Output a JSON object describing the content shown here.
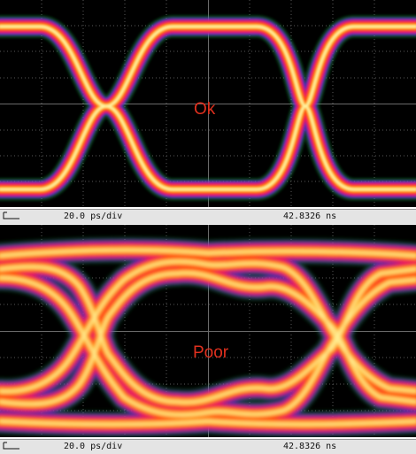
{
  "panels": [
    {
      "quality_label": "Ok",
      "timebase": "20.0 ps/div",
      "timestamp": "42.8326 ns",
      "eye": "open"
    },
    {
      "quality_label": "Poor",
      "timebase": "20.0 ps/div",
      "timestamp": "42.8326 ns",
      "eye": "degraded"
    }
  ],
  "colors": {
    "trace_core": "#fff7a8",
    "trace_mid": "#ffb300",
    "trace_outer": "#ff3d1f",
    "trace_edge": "#e0106a",
    "trace_halo": "#5a2ad8",
    "trace_fringe": "#1f9e3a",
    "grid": "#5a5a5a",
    "label": "#e0301e"
  }
}
